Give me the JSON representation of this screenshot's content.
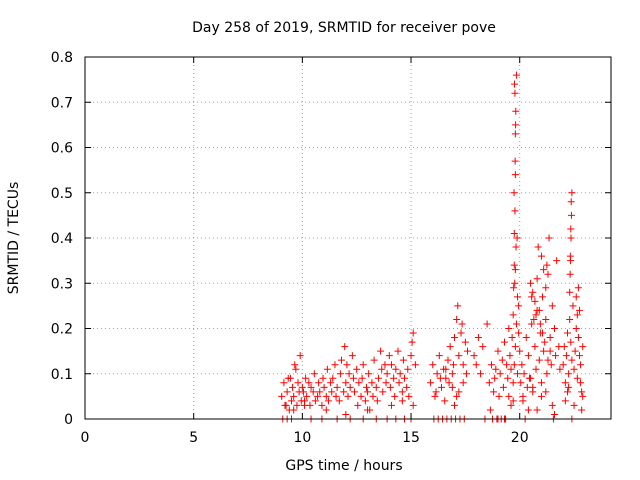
{
  "chart_data": {
    "type": "scatter",
    "title": "Day 258 of 2019, SRMTID for receiver pove",
    "xlabel": "GPS time / hours",
    "ylabel": "SRMTID / TECUs",
    "xlim": [
      0,
      24.2
    ],
    "ylim": [
      0,
      0.8
    ],
    "xticks": [
      0,
      5,
      10,
      15,
      20
    ],
    "yticks": [
      0,
      0.1,
      0.2,
      0.3,
      0.4,
      0.5,
      0.6,
      0.7,
      0.8
    ],
    "xtick_labels": [
      "0",
      "5",
      "10",
      "15",
      "20"
    ],
    "ytick_labels": [
      "0",
      "0.1",
      "0.2",
      "0.3",
      "0.4",
      "0.5",
      "0.6",
      "0.7",
      "0.8"
    ],
    "grid": true,
    "marker": "plus",
    "color": "#ff0000",
    "series": [
      {
        "x": [
          9.05,
          9.15,
          9.25,
          9.3,
          9.4,
          9.45,
          9.5,
          9.55,
          9.6,
          9.7,
          9.75,
          9.8,
          9.85,
          9.9,
          9.95,
          10.0,
          9.1,
          9.2,
          9.35,
          9.65,
          10.05,
          10.1,
          10.15,
          10.2,
          10.3,
          10.35,
          10.4,
          10.5,
          10.55,
          10.6,
          10.7,
          10.75,
          10.8,
          10.9,
          10.95,
          11.0,
          11.1,
          11.15,
          11.2,
          11.3,
          11.35,
          11.4,
          11.5,
          11.55,
          11.6,
          11.7,
          11.75,
          11.8,
          11.9,
          11.95,
          12.0,
          12.05,
          12.1,
          12.15,
          12.2,
          12.3,
          12.35,
          12.4,
          12.5,
          12.55,
          12.6,
          12.7,
          12.75,
          12.8,
          12.9,
          12.95,
          13.0,
          13.05,
          13.1,
          13.2,
          13.25,
          13.3,
          13.4,
          13.45,
          13.5,
          13.6,
          13.65,
          13.7,
          13.8,
          13.85,
          13.9,
          14.0,
          14.05,
          14.1,
          14.2,
          14.25,
          14.3,
          14.4,
          14.45,
          14.5,
          14.6,
          14.65,
          14.7,
          14.8,
          14.85,
          14.9,
          15.0,
          15.05,
          15.1,
          15.2,
          9.3,
          9.5,
          10.4,
          10.9,
          11.6,
          12.2,
          12.8,
          13.4,
          13.9,
          14.3,
          14.7,
          15.0,
          9.6,
          10.1,
          11.1,
          12.0,
          13.0,
          14.1,
          14.6,
          15.1,
          15.9,
          16.0,
          16.1,
          16.2,
          16.3,
          16.4,
          16.5,
          16.6,
          16.7,
          16.8,
          16.9,
          17.0,
          17.1,
          17.15,
          17.2,
          17.3,
          17.4,
          17.5,
          17.6,
          16.05,
          16.25,
          16.45,
          16.65,
          16.85,
          17.05,
          17.25,
          17.45,
          16.15,
          16.35,
          16.55,
          16.75,
          16.95,
          17.35,
          17.55,
          17.0,
          17.2,
          17.4,
          16.6,
          16.9,
          17.1,
          17.9,
          18.0,
          18.1,
          18.2,
          18.3,
          18.5,
          18.6,
          18.7,
          18.8,
          18.85,
          18.9,
          19.0,
          19.05,
          19.1,
          19.2,
          19.25,
          19.3,
          19.4,
          19.45,
          19.5,
          19.55,
          19.6,
          19.65,
          19.7,
          19.75,
          19.8,
          19.85,
          19.9,
          19.95,
          18.75,
          18.95,
          19.15,
          19.35,
          19.5,
          19.6,
          19.7,
          18.4,
          18.65,
          19.0,
          19.3,
          19.75,
          19.75,
          19.78,
          19.8,
          19.8,
          19.82,
          19.78,
          19.76,
          19.85,
          19.88,
          19.8,
          19.72,
          19.9,
          19.95,
          19.7,
          19.77,
          19.83,
          19.74,
          19.79,
          19.81,
          20.0,
          20.05,
          20.1,
          20.15,
          20.2,
          20.3,
          20.35,
          20.4,
          20.5,
          20.55,
          20.6,
          20.7,
          20.75,
          20.8,
          20.9,
          20.95,
          21.0,
          21.05,
          21.1,
          21.2,
          21.25,
          21.3,
          21.4,
          21.45,
          21.5,
          21.6,
          21.65,
          21.7,
          21.8,
          21.85,
          20.5,
          20.6,
          20.7,
          20.8,
          20.9,
          21.0,
          21.1,
          21.2,
          20.65,
          20.85,
          21.05,
          21.25,
          21.35,
          20.55,
          20.75,
          20.95,
          21.15,
          21.3,
          20.45,
          21.4,
          21.5,
          20.25,
          20.4,
          21.55,
          20.15,
          21.6,
          21.0,
          20.8,
          20.6,
          21.2,
          22.0,
          22.05,
          22.1,
          22.15,
          22.2,
          22.25,
          22.3,
          22.35,
          22.4,
          22.45,
          22.5,
          22.55,
          22.6,
          22.65,
          22.7,
          22.75,
          22.8,
          22.85,
          22.9,
          22.3,
          22.32,
          22.34,
          22.36,
          22.38,
          22.4,
          22.35,
          22.33,
          22.37,
          22.6,
          22.65,
          22.7,
          22.75,
          22.1,
          22.2,
          22.5,
          22.8,
          22.85,
          22.9,
          22.4,
          22.25
        ],
        "y": [
          0.05,
          0.08,
          0.03,
          0.06,
          0.02,
          0.09,
          0.04,
          0.07,
          0.05,
          0.11,
          0.03,
          0.08,
          0.06,
          0.14,
          0.04,
          0.07,
          0.0,
          0.03,
          0.09,
          0.12,
          0.06,
          0.04,
          0.09,
          0.05,
          0.08,
          0.03,
          0.07,
          0.06,
          0.1,
          0.04,
          0.05,
          0.08,
          0.06,
          0.03,
          0.09,
          0.07,
          0.05,
          0.11,
          0.04,
          0.08,
          0.06,
          0.09,
          0.12,
          0.05,
          0.07,
          0.04,
          0.1,
          0.13,
          0.06,
          0.16,
          0.08,
          0.12,
          0.05,
          0.1,
          0.07,
          0.14,
          0.09,
          0.06,
          0.11,
          0.03,
          0.08,
          0.05,
          0.09,
          0.12,
          0.04,
          0.07,
          0.06,
          0.1,
          0.02,
          0.08,
          0.05,
          0.13,
          0.07,
          0.04,
          0.09,
          0.15,
          0.11,
          0.06,
          0.12,
          0.08,
          0.1,
          0.14,
          0.07,
          0.12,
          0.09,
          0.05,
          0.11,
          0.15,
          0.08,
          0.1,
          0.06,
          0.13,
          0.09,
          0.07,
          0.11,
          0.05,
          0.14,
          0.17,
          0.19,
          0.12,
          0.0,
          0.0,
          0.0,
          0.0,
          0.0,
          0.0,
          0.0,
          0.0,
          0.0,
          0.0,
          0.0,
          0.0,
          0.02,
          0.03,
          0.02,
          0.01,
          0.02,
          0.03,
          0.04,
          0.03,
          0.08,
          0.12,
          0.05,
          0.1,
          0.14,
          0.07,
          0.11,
          0.09,
          0.13,
          0.16,
          0.1,
          0.18,
          0.22,
          0.25,
          0.14,
          0.19,
          0.12,
          0.17,
          0.15,
          0.0,
          0.0,
          0.0,
          0.0,
          0.0,
          0.0,
          0.0,
          0.0,
          0.06,
          0.09,
          0.04,
          0.08,
          0.12,
          0.21,
          0.1,
          0.03,
          0.06,
          0.08,
          0.11,
          0.07,
          0.05,
          0.14,
          0.12,
          0.18,
          0.1,
          0.16,
          0.21,
          0.08,
          0.12,
          0.06,
          0.09,
          0.11,
          0.15,
          0.05,
          0.1,
          0.13,
          0.07,
          0.17,
          0.12,
          0.09,
          0.2,
          0.14,
          0.11,
          0.18,
          0.08,
          0.12,
          0.16,
          0.21,
          0.1,
          0.19,
          0.0,
          0.0,
          0.0,
          0.0,
          0.05,
          0.03,
          0.04,
          0.0,
          0.02,
          0.0,
          0.0,
          0.34,
          0.41,
          0.46,
          0.54,
          0.63,
          0.68,
          0.72,
          0.74,
          0.76,
          0.4,
          0.33,
          0.29,
          0.27,
          0.25,
          0.23,
          0.3,
          0.38,
          0.5,
          0.57,
          0.65,
          0.15,
          0.08,
          0.12,
          0.05,
          0.1,
          0.18,
          0.07,
          0.14,
          0.09,
          0.21,
          0.06,
          0.16,
          0.11,
          0.24,
          0.13,
          0.19,
          0.08,
          0.27,
          0.15,
          0.22,
          0.1,
          0.32,
          0.18,
          0.12,
          0.25,
          0.2,
          0.14,
          0.35,
          0.16,
          0.11,
          0.3,
          0.28,
          0.26,
          0.31,
          0.24,
          0.36,
          0.33,
          0.29,
          0.22,
          0.38,
          0.19,
          0.34,
          0.4,
          0.27,
          0.23,
          0.21,
          0.17,
          0.13,
          0.09,
          0.15,
          0.03,
          0.0,
          0.02,
          0.0,
          0.04,
          0.01,
          0.05,
          0.02,
          0.07,
          0.06,
          0.12,
          0.16,
          0.08,
          0.14,
          0.19,
          0.1,
          0.22,
          0.17,
          0.13,
          0.25,
          0.11,
          0.15,
          0.2,
          0.09,
          0.18,
          0.14,
          0.12,
          0.06,
          0.16,
          0.28,
          0.32,
          0.35,
          0.4,
          0.45,
          0.5,
          0.42,
          0.36,
          0.48,
          0.27,
          0.23,
          0.29,
          0.24,
          0.04,
          0.06,
          0.03,
          0.08,
          0.02,
          0.05,
          0.0,
          0.07
        ]
      }
    ]
  }
}
